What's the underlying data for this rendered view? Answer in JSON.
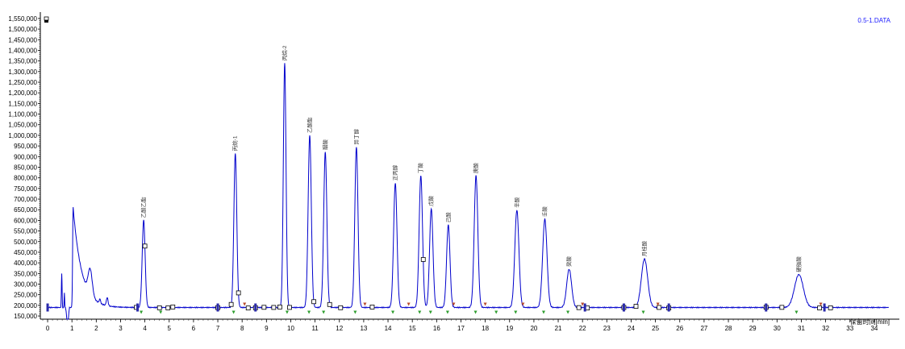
{
  "window": {
    "file_title": "0.5-1.DATA"
  },
  "chart_data": {
    "type": "line",
    "xlabel": "保留时间[min]",
    "ylabel": "",
    "xlim": [
      -0.3,
      34.7
    ],
    "ylim": [
      135000,
      1580000
    ],
    "baseline": 190000,
    "x_ticks": [
      0,
      1,
      2,
      3,
      4,
      5,
      6,
      7,
      8,
      9,
      10,
      11,
      12,
      13,
      14,
      15,
      16,
      17,
      18,
      19,
      20,
      21,
      22,
      23,
      24,
      25,
      26,
      27,
      28,
      29,
      30,
      31,
      32,
      33,
      34
    ],
    "y_ticks": [
      150000,
      200000,
      250000,
      300000,
      350000,
      400000,
      450000,
      500000,
      550000,
      600000,
      650000,
      700000,
      750000,
      800000,
      850000,
      900000,
      950000,
      1000000,
      1050000,
      1100000,
      1150000,
      1200000,
      1250000,
      1300000,
      1350000,
      1400000,
      1450000,
      1500000,
      1550000
    ],
    "y_tick_labels": [
      "150,000",
      "200,000",
      "250,000",
      "300,000",
      "350,000",
      "400,000",
      "450,000",
      "500,000",
      "550,000",
      "600,000",
      "650,000",
      "700,000",
      "750,000",
      "800,000",
      "850,000",
      "900,000",
      "950,000",
      "1,000,000",
      "1,050,000",
      "1,100,000",
      "1,150,000",
      "1,200,000",
      "1,250,000",
      "1,300,000",
      "1,350,000",
      "1,400,000",
      "1,450,000",
      "1,500,000",
      "1,550,000"
    ],
    "line_color": "#0000cc",
    "grid": false,
    "series": [
      {
        "peaks": [
          {
            "label": "乙酸乙酯",
            "rt": 3.95,
            "height": 600000,
            "width": 0.06
          },
          {
            "label": "丙烷-1",
            "rt": 7.72,
            "height": 915000,
            "width": 0.06
          },
          {
            "label": "丙烷-2",
            "rt": 9.75,
            "height": 1340000,
            "width": 0.055
          },
          {
            "label": "乙酸酯",
            "rt": 10.78,
            "height": 1000000,
            "width": 0.065
          },
          {
            "label": "醋酸",
            "rt": 11.42,
            "height": 920000,
            "width": 0.065
          },
          {
            "label": "异丁醇",
            "rt": 12.7,
            "height": 945000,
            "width": 0.065
          },
          {
            "label": "正丙醇",
            "rt": 14.3,
            "height": 775000,
            "width": 0.07
          },
          {
            "label": "丁酸",
            "rt": 15.35,
            "height": 810000,
            "width": 0.07
          },
          {
            "label": "戊酸",
            "rt": 15.78,
            "height": 655000,
            "width": 0.07
          },
          {
            "label": "己酸",
            "rt": 16.48,
            "height": 578000,
            "width": 0.07
          },
          {
            "label": "庚酸",
            "rt": 17.62,
            "height": 810000,
            "width": 0.075
          },
          {
            "label": "辛酸",
            "rt": 19.3,
            "height": 648000,
            "width": 0.085
          },
          {
            "label": "壬酸",
            "rt": 20.45,
            "height": 605000,
            "width": 0.09
          },
          {
            "label": "癸酸",
            "rt": 21.45,
            "height": 370000,
            "width": 0.1
          },
          {
            "label": "月桂酸",
            "rt": 24.55,
            "height": 418000,
            "width": 0.13
          },
          {
            "label": "硬脂酸",
            "rt": 30.9,
            "height": 345000,
            "width": 0.18
          }
        ]
      }
    ]
  }
}
